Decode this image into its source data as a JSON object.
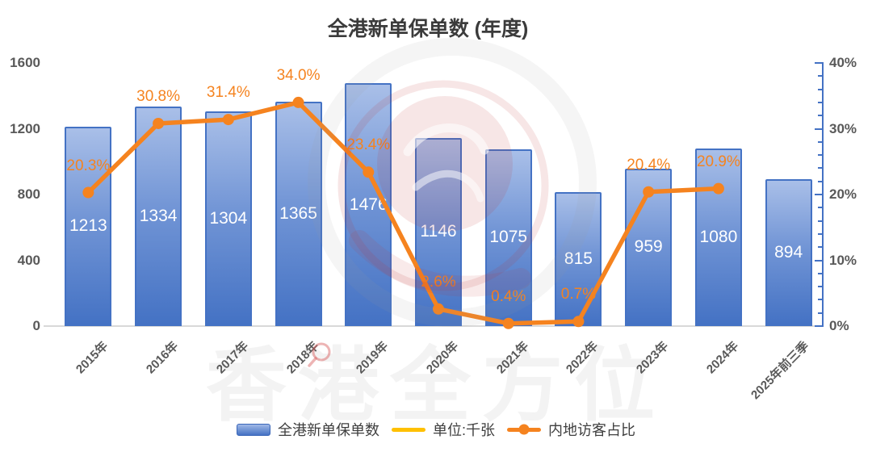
{
  "title": "全港新单保单数 (年度)",
  "chart_data": {
    "type": "bar+line",
    "categories": [
      "2015年",
      "2016年",
      "2017年",
      "2018年",
      "2019年",
      "2020年",
      "2021年",
      "2022年",
      "2023年",
      "2024年",
      "2025年前三季"
    ],
    "series": [
      {
        "name": "全港新单保单数",
        "type": "bar",
        "color": "#4472c4",
        "values": [
          1213,
          1334,
          1304,
          1365,
          1476,
          1146,
          1075,
          815,
          959,
          1080,
          894
        ]
      },
      {
        "name": "内地访客占比",
        "type": "line",
        "color": "#f5831f",
        "unit": "%",
        "values": [
          20.3,
          30.8,
          31.4,
          34.0,
          23.4,
          2.6,
          0.4,
          0.7,
          20.4,
          20.9,
          null
        ]
      }
    ],
    "left_axis": {
      "min": 0,
      "max": 1600,
      "ticks": [
        0,
        400,
        800,
        1200,
        1600
      ]
    },
    "right_axis": {
      "min": 0,
      "max": 40,
      "major_step": 10,
      "minor_step": 2,
      "tick_labels": [
        "0%",
        "10%",
        "20%",
        "30%",
        "40%"
      ],
      "color": "#4472c4"
    },
    "legend": [
      {
        "label": "全港新单保单数",
        "swatch": "bar",
        "color": "#4472c4"
      },
      {
        "label": "单位:千张",
        "swatch": "line",
        "color": "#ffc000"
      },
      {
        "label": "内地访客占比",
        "swatch": "line-dot",
        "color": "#f5831f"
      }
    ],
    "grid": false,
    "legend_position": "bottom",
    "watermark_text": "香港全方位"
  }
}
